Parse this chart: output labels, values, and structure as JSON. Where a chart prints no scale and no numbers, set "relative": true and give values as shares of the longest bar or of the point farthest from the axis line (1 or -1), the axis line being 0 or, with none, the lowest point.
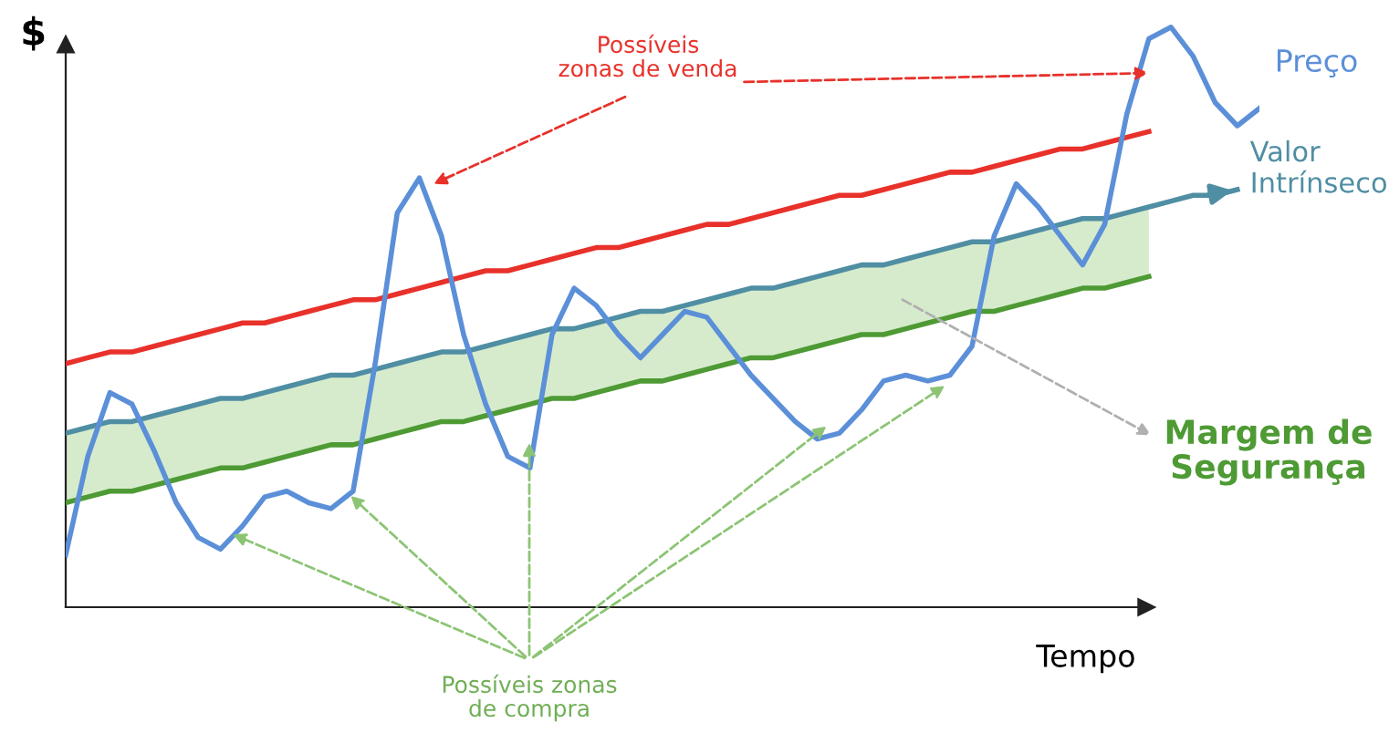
{
  "chart_data": {
    "type": "line",
    "relative": true,
    "ylabel": "$",
    "xlabel": "Tempo",
    "legend": false,
    "marker": "none",
    "line_style": "solid",
    "categories": [
      null,
      null,
      null,
      null,
      null,
      null,
      null,
      null,
      null,
      null,
      null,
      null,
      null,
      null,
      null,
      null,
      null,
      null,
      null,
      null,
      null,
      null,
      null,
      null,
      null,
      null,
      null,
      null,
      null,
      null,
      null,
      null,
      null,
      null,
      null,
      null,
      null,
      null,
      null,
      null,
      null,
      null,
      null,
      null,
      null,
      null,
      null,
      null,
      null,
      null,
      null,
      null,
      null,
      null,
      null
    ],
    "series": [
      {
        "name": "Valor Intrínseco",
        "color": "#4f8ea3",
        "values": [
          0.3,
          0.31,
          0.32,
          0.32,
          0.33,
          0.34,
          0.35,
          0.36,
          0.36,
          0.37,
          0.38,
          0.39,
          0.4,
          0.4,
          0.41,
          0.42,
          0.43,
          0.44,
          0.44,
          0.45,
          0.46,
          0.47,
          0.48,
          0.48,
          0.49,
          0.5,
          0.51,
          0.51,
          0.52,
          0.53,
          0.54,
          0.55,
          0.55,
          0.56,
          0.57,
          0.58,
          0.59,
          0.59,
          0.6,
          0.61,
          0.62,
          0.63,
          0.63,
          0.64,
          0.65,
          0.66,
          0.67,
          0.67,
          0.68,
          0.69,
          0.7,
          0.71,
          0.71,
          0.72,
          null
        ],
        "lower": [
          0.18,
          0.19,
          0.2,
          0.2,
          0.21,
          0.22,
          0.23,
          0.24,
          0.24,
          0.25,
          0.26,
          0.27,
          0.28,
          0.28,
          0.29,
          0.3,
          0.31,
          0.32,
          0.32,
          0.33,
          0.34,
          0.35,
          0.36,
          0.36,
          0.37,
          0.38,
          0.39,
          0.39,
          0.4,
          0.41,
          0.42,
          0.43,
          0.43,
          0.44,
          0.45,
          0.46,
          0.47,
          0.47,
          0.48,
          0.49,
          0.5,
          0.51,
          0.51,
          0.52,
          0.53,
          0.54,
          0.55,
          0.55,
          0.56,
          0.57,
          null,
          null,
          null,
          null,
          null
        ],
        "upper": [
          0.3,
          0.31,
          0.32,
          0.32,
          0.33,
          0.34,
          0.35,
          0.36,
          0.36,
          0.37,
          0.38,
          0.39,
          0.4,
          0.4,
          0.41,
          0.42,
          0.43,
          0.44,
          0.44,
          0.45,
          0.46,
          0.47,
          0.48,
          0.48,
          0.49,
          0.5,
          0.51,
          0.51,
          0.52,
          0.53,
          0.54,
          0.55,
          0.55,
          0.56,
          0.57,
          0.58,
          0.59,
          0.59,
          0.6,
          0.61,
          0.62,
          0.63,
          0.63,
          0.64,
          0.65,
          0.66,
          0.67,
          0.67,
          0.68,
          0.69,
          null,
          null,
          null,
          null,
          null
        ]
      },
      {
        "color": "#4e9a34",
        "values": [
          0.18,
          0.19,
          0.2,
          0.2,
          0.21,
          0.22,
          0.23,
          0.24,
          0.24,
          0.25,
          0.26,
          0.27,
          0.28,
          0.28,
          0.29,
          0.3,
          0.31,
          0.32,
          0.32,
          0.33,
          0.34,
          0.35,
          0.36,
          0.36,
          0.37,
          0.38,
          0.39,
          0.39,
          0.4,
          0.41,
          0.42,
          0.43,
          0.43,
          0.44,
          0.45,
          0.46,
          0.47,
          0.47,
          0.48,
          0.49,
          0.5,
          0.51,
          0.51,
          0.52,
          0.53,
          0.54,
          0.55,
          0.55,
          0.56,
          0.57,
          null,
          null,
          null,
          null,
          null
        ]
      },
      {
        "color": "#e8312a",
        "values": [
          0.42,
          0.43,
          0.44,
          0.44,
          0.45,
          0.46,
          0.47,
          0.48,
          0.49,
          0.49,
          0.5,
          0.51,
          0.52,
          0.53,
          0.53,
          0.54,
          0.55,
          0.56,
          0.57,
          0.58,
          0.58,
          0.59,
          0.6,
          0.61,
          0.62,
          0.62,
          0.63,
          0.64,
          0.65,
          0.66,
          0.66,
          0.67,
          0.68,
          0.69,
          0.7,
          0.71,
          0.71,
          0.72,
          0.73,
          0.74,
          0.75,
          0.75,
          0.76,
          0.77,
          0.78,
          0.79,
          0.79,
          0.8,
          0.81,
          0.82,
          null,
          null,
          null,
          null,
          null
        ]
      },
      {
        "name": "Preço",
        "color": "#5b8fd8",
        "values": [
          0.09,
          0.26,
          0.37,
          0.35,
          0.27,
          0.18,
          0.12,
          0.1,
          0.14,
          0.19,
          0.2,
          0.18,
          0.17,
          0.2,
          0.42,
          0.68,
          0.74,
          0.64,
          0.47,
          0.35,
          0.26,
          0.24,
          0.47,
          0.55,
          0.52,
          0.47,
          0.43,
          0.47,
          0.51,
          0.5,
          0.45,
          0.4,
          0.36,
          0.32,
          0.29,
          0.3,
          0.34,
          0.39,
          0.4,
          0.39,
          0.4,
          0.45,
          0.64,
          0.73,
          0.69,
          0.64,
          0.59,
          0.66,
          0.85,
          0.98,
          1.0,
          0.95,
          0.87,
          0.83,
          0.86
        ]
      }
    ],
    "annotations": [
      "Possíveis zonas de venda",
      "Possíveis zonas de compra",
      "Margem de Segurança"
    ]
  }
}
